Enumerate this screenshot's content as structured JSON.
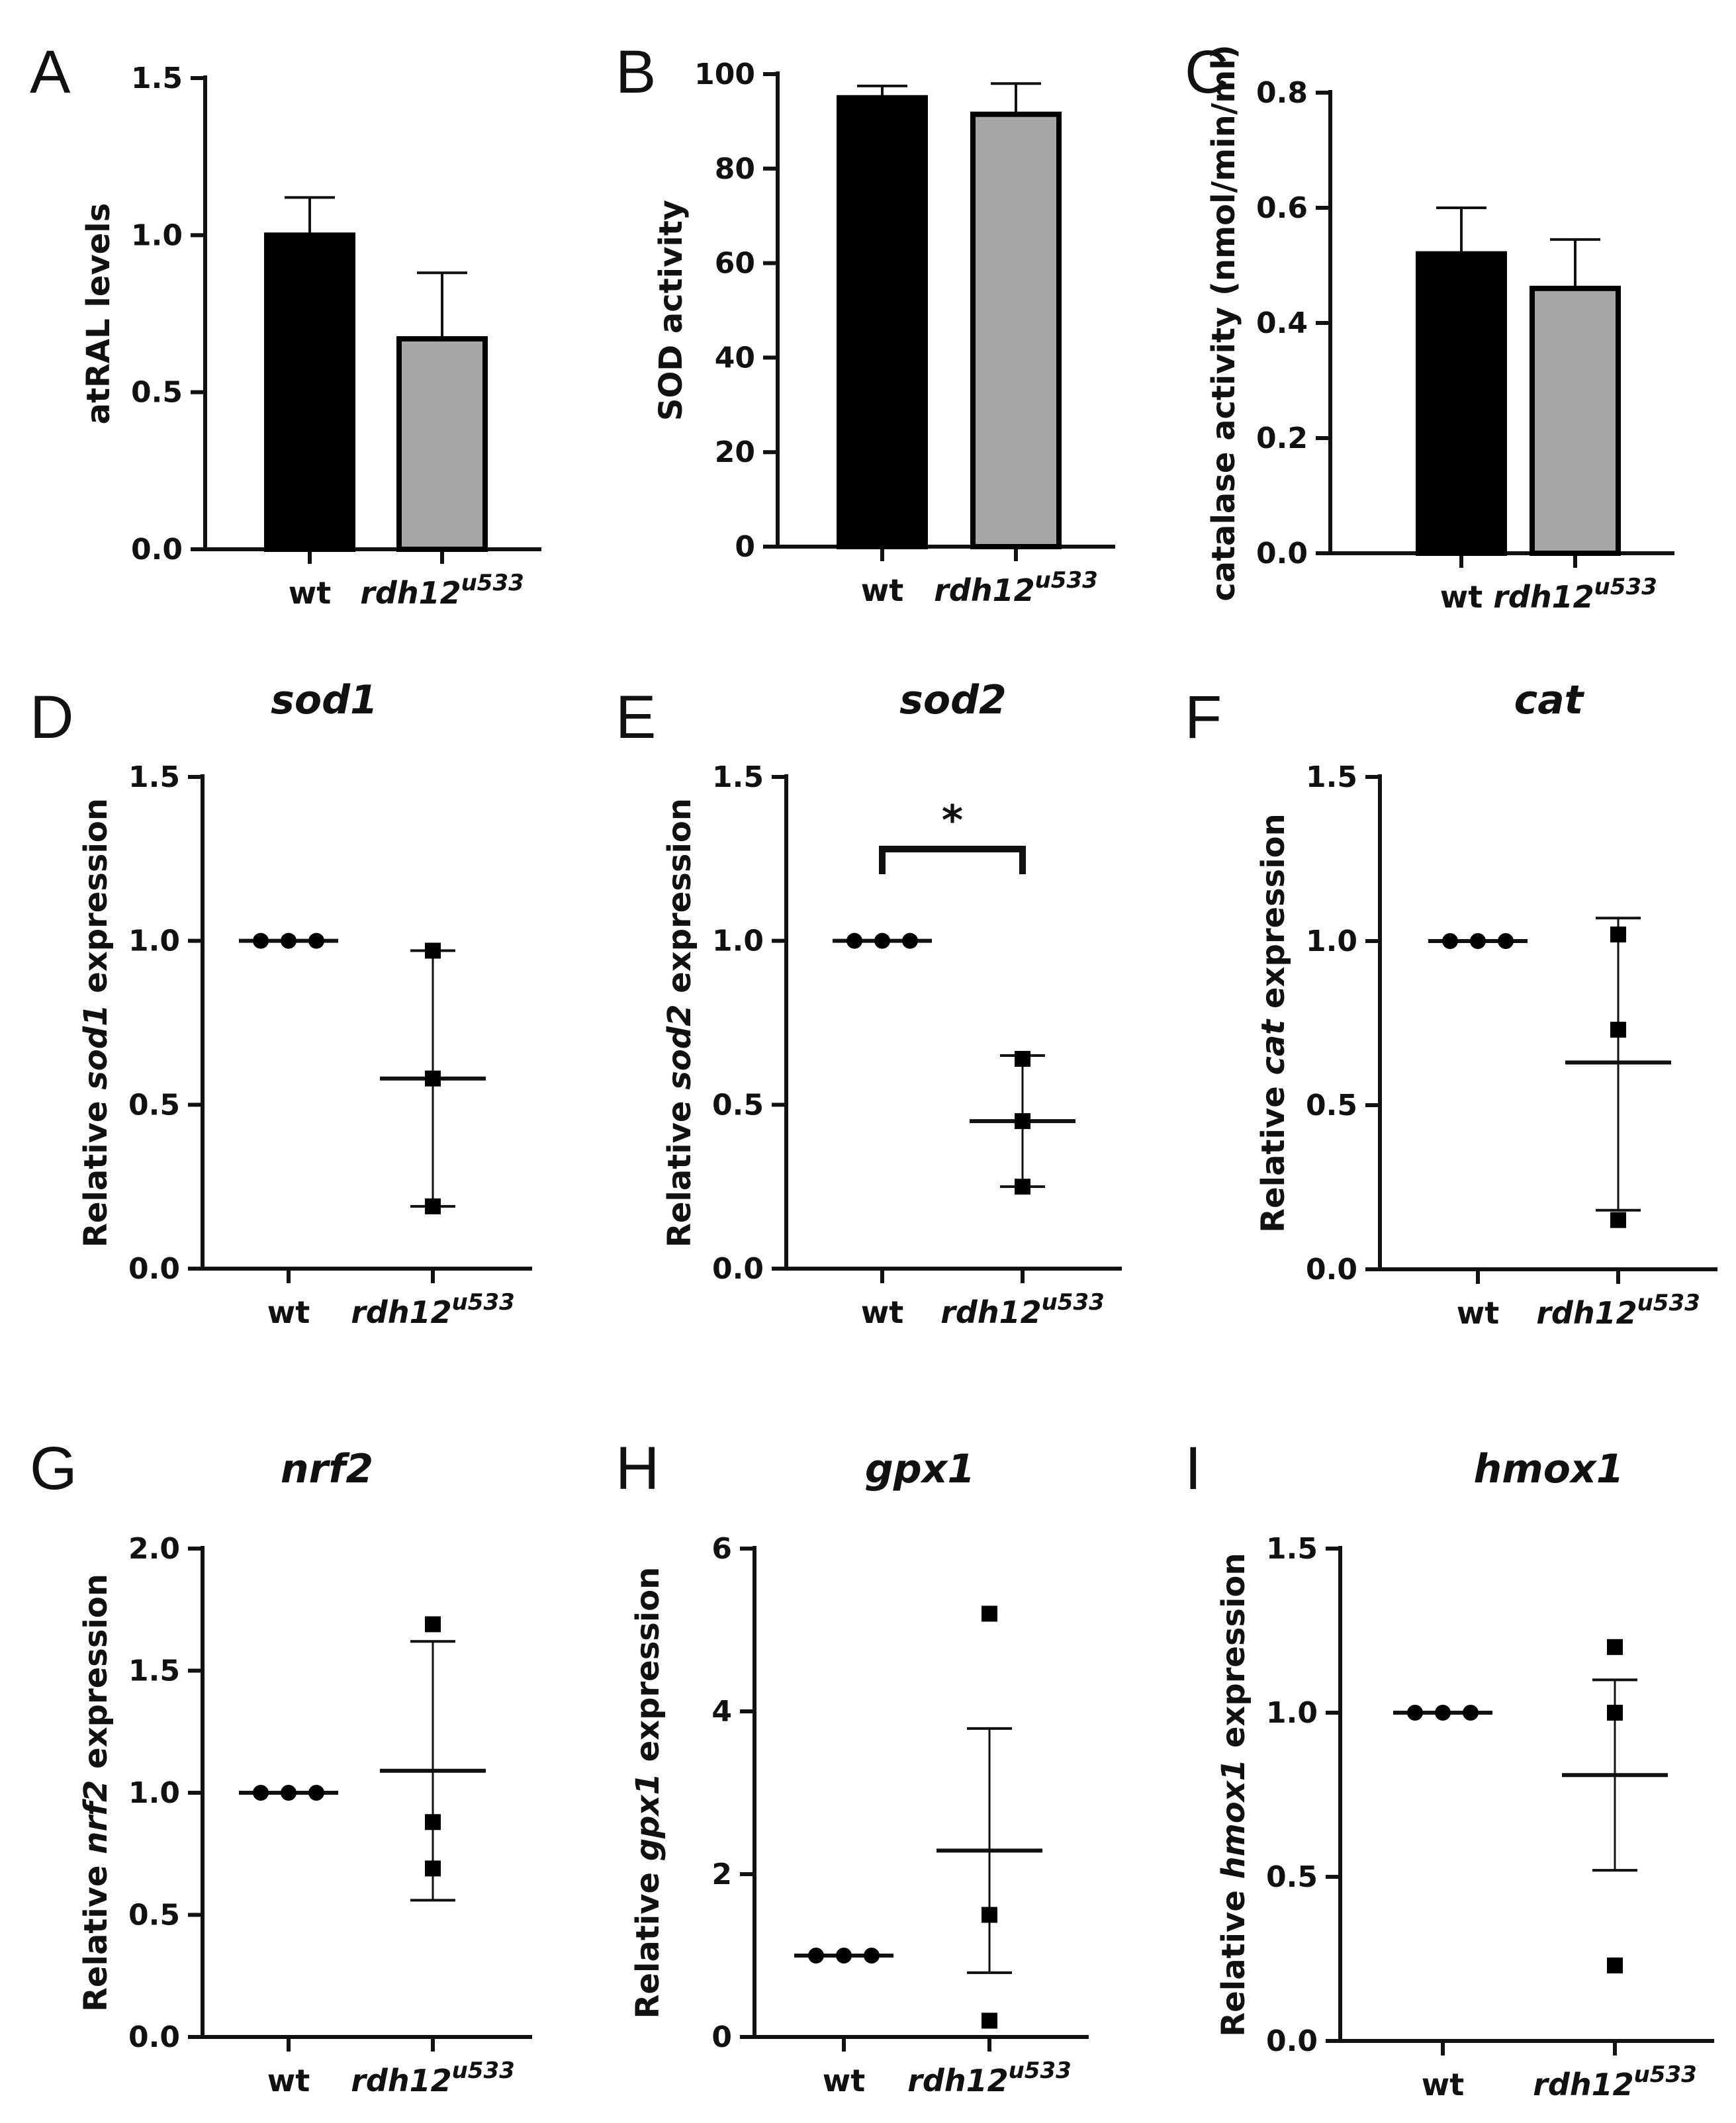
{
  "chart_data": [
    {
      "panel": "A",
      "type": "bar",
      "categories": [
        {
          "main": "wt",
          "sup": ""
        },
        {
          "main": "rdh12",
          "sup": "u533"
        }
      ],
      "values": [
        1.0,
        0.67
      ],
      "errors": [
        0.12,
        0.21
      ],
      "bar_colors": [
        "#000000",
        "#a6a6a6"
      ],
      "ylabel": {
        "pre": "atRAL levels",
        "it": "",
        "post": ""
      },
      "title": "",
      "ylim": [
        0,
        1.5
      ],
      "ticks": [
        0,
        0.5,
        1.0,
        1.5
      ],
      "tick_labels": [
        "0.0",
        "0.5",
        "1.0",
        "1.5"
      ]
    },
    {
      "panel": "B",
      "type": "bar",
      "categories": [
        {
          "main": "wt",
          "sup": ""
        },
        {
          "main": "rdh12",
          "sup": "u533"
        }
      ],
      "values": [
        95,
        91.5
      ],
      "errors": [
        2.5,
        6.5
      ],
      "bar_colors": [
        "#000000",
        "#a6a6a6"
      ],
      "ylabel": {
        "pre": "SOD activity",
        "it": "",
        "post": ""
      },
      "title": "",
      "ylim": [
        0,
        100
      ],
      "ticks": [
        0,
        20,
        40,
        60,
        80,
        100
      ],
      "tick_labels": [
        "0",
        "20",
        "40",
        "60",
        "80",
        "100"
      ]
    },
    {
      "panel": "C",
      "type": "bar",
      "categories": [
        {
          "main": "wt",
          "sup": ""
        },
        {
          "main": "rdh12",
          "sup": "u533"
        }
      ],
      "values": [
        0.52,
        0.46
      ],
      "errors": [
        0.08,
        0.085
      ],
      "bar_colors": [
        "#000000",
        "#a6a6a6"
      ],
      "ylabel": {
        "pre": "catalase activity (nmol/min/ml)",
        "it": "",
        "post": ""
      },
      "title": "",
      "ylim": [
        0,
        0.8
      ],
      "ticks": [
        0,
        0.2,
        0.4,
        0.6,
        0.8
      ],
      "tick_labels": [
        "0.0",
        "0.2",
        "0.4",
        "0.6",
        "0.8"
      ]
    },
    {
      "panel": "D",
      "type": "scatter",
      "categories": [
        {
          "main": "wt",
          "sup": ""
        },
        {
          "main": "rdh12",
          "sup": "u533"
        }
      ],
      "points": [
        [
          1.0,
          1.0,
          1.0
        ],
        [
          0.97,
          0.58,
          0.19
        ]
      ],
      "means": [
        1.0,
        0.58
      ],
      "err_low": [
        1.0,
        0.19
      ],
      "err_high": [
        1.0,
        0.97
      ],
      "ylabel": {
        "pre": "Relative ",
        "it": "sod1",
        "post": " expression"
      },
      "title": "sod1",
      "ylim": [
        0,
        1.5
      ],
      "ticks": [
        0,
        0.5,
        1.0,
        1.5
      ],
      "tick_labels": [
        "0.0",
        "0.5",
        "1.0",
        "1.5"
      ]
    },
    {
      "panel": "E",
      "type": "scatter",
      "categories": [
        {
          "main": "wt",
          "sup": ""
        },
        {
          "main": "rdh12",
          "sup": "u533"
        }
      ],
      "points": [
        [
          1.0,
          1.0,
          1.0
        ],
        [
          0.64,
          0.45,
          0.25
        ]
      ],
      "means": [
        1.0,
        0.45
      ],
      "err_low": [
        1.0,
        0.25
      ],
      "err_high": [
        1.0,
        0.65
      ],
      "ylabel": {
        "pre": "Relative ",
        "it": "sod2",
        "post": " expression"
      },
      "title": "sod2",
      "ylim": [
        0,
        1.5
      ],
      "ticks": [
        0,
        0.5,
        1.0,
        1.5
      ],
      "tick_labels": [
        "0.0",
        "0.5",
        "1.0",
        "1.5"
      ],
      "significance": {
        "label": "*",
        "y": 1.28
      }
    },
    {
      "panel": "F",
      "type": "scatter",
      "categories": [
        {
          "main": "wt",
          "sup": ""
        },
        {
          "main": "rdh12",
          "sup": "u533"
        }
      ],
      "points": [
        [
          1.0,
          1.0,
          1.0
        ],
        [
          1.02,
          0.73,
          0.15
        ]
      ],
      "means": [
        1.0,
        0.63
      ],
      "err_low": [
        1.0,
        0.18
      ],
      "err_high": [
        1.0,
        1.07
      ],
      "ylabel": {
        "pre": "Relative ",
        "it": "cat",
        "post": " expression"
      },
      "title": "cat",
      "ylim": [
        0,
        1.5
      ],
      "ticks": [
        0,
        0.5,
        1.0,
        1.5
      ],
      "tick_labels": [
        "0.0",
        "0.5",
        "1.0",
        "1.5"
      ]
    },
    {
      "panel": "G",
      "type": "scatter",
      "categories": [
        {
          "main": "wt",
          "sup": ""
        },
        {
          "main": "rdh12",
          "sup": "u533"
        }
      ],
      "points": [
        [
          1.0,
          1.0,
          1.0
        ],
        [
          1.69,
          0.88,
          0.69
        ]
      ],
      "means": [
        1.0,
        1.09
      ],
      "err_low": [
        1.0,
        0.56
      ],
      "err_high": [
        1.0,
        1.62
      ],
      "ylabel": {
        "pre": "Relative ",
        "it": "nrf2",
        "post": " expression"
      },
      "title": "nrf2",
      "ylim": [
        0,
        2.0
      ],
      "ticks": [
        0,
        0.5,
        1.0,
        1.5,
        2.0
      ],
      "tick_labels": [
        "0.0",
        "0.5",
        "1.0",
        "1.5",
        "2.0"
      ]
    },
    {
      "panel": "H",
      "type": "scatter",
      "categories": [
        {
          "main": "wt",
          "sup": ""
        },
        {
          "main": "rdh12",
          "sup": "u533"
        }
      ],
      "points": [
        [
          1.0,
          1.0,
          1.0
        ],
        [
          5.2,
          1.5,
          0.2
        ]
      ],
      "means": [
        1.0,
        2.29
      ],
      "err_low": [
        1.0,
        0.79
      ],
      "err_high": [
        1.0,
        3.79
      ],
      "ylabel": {
        "pre": "Relative ",
        "it": "gpx1",
        "post": " expression"
      },
      "title": "gpx1",
      "ylim": [
        0,
        6
      ],
      "ticks": [
        0,
        2,
        4,
        6
      ],
      "tick_labels": [
        "0",
        "2",
        "4",
        "6"
      ]
    },
    {
      "panel": "I",
      "type": "scatter",
      "categories": [
        {
          "main": "wt",
          "sup": ""
        },
        {
          "main": "rdh12",
          "sup": "u533"
        }
      ],
      "points": [
        [
          1.0,
          1.0,
          1.0
        ],
        [
          1.2,
          1.0,
          0.23
        ]
      ],
      "means": [
        1.0,
        0.81
      ],
      "err_low": [
        1.0,
        0.52
      ],
      "err_high": [
        1.0,
        1.1
      ],
      "ylabel": {
        "pre": "Relative ",
        "it": "hmox1",
        "post": " expression"
      },
      "title": "hmox1",
      "ylim": [
        0,
        1.5
      ],
      "ticks": [
        0,
        0.5,
        1.0,
        1.5
      ],
      "tick_labels": [
        "0.0",
        "0.5",
        "1.0",
        "1.5"
      ]
    }
  ]
}
